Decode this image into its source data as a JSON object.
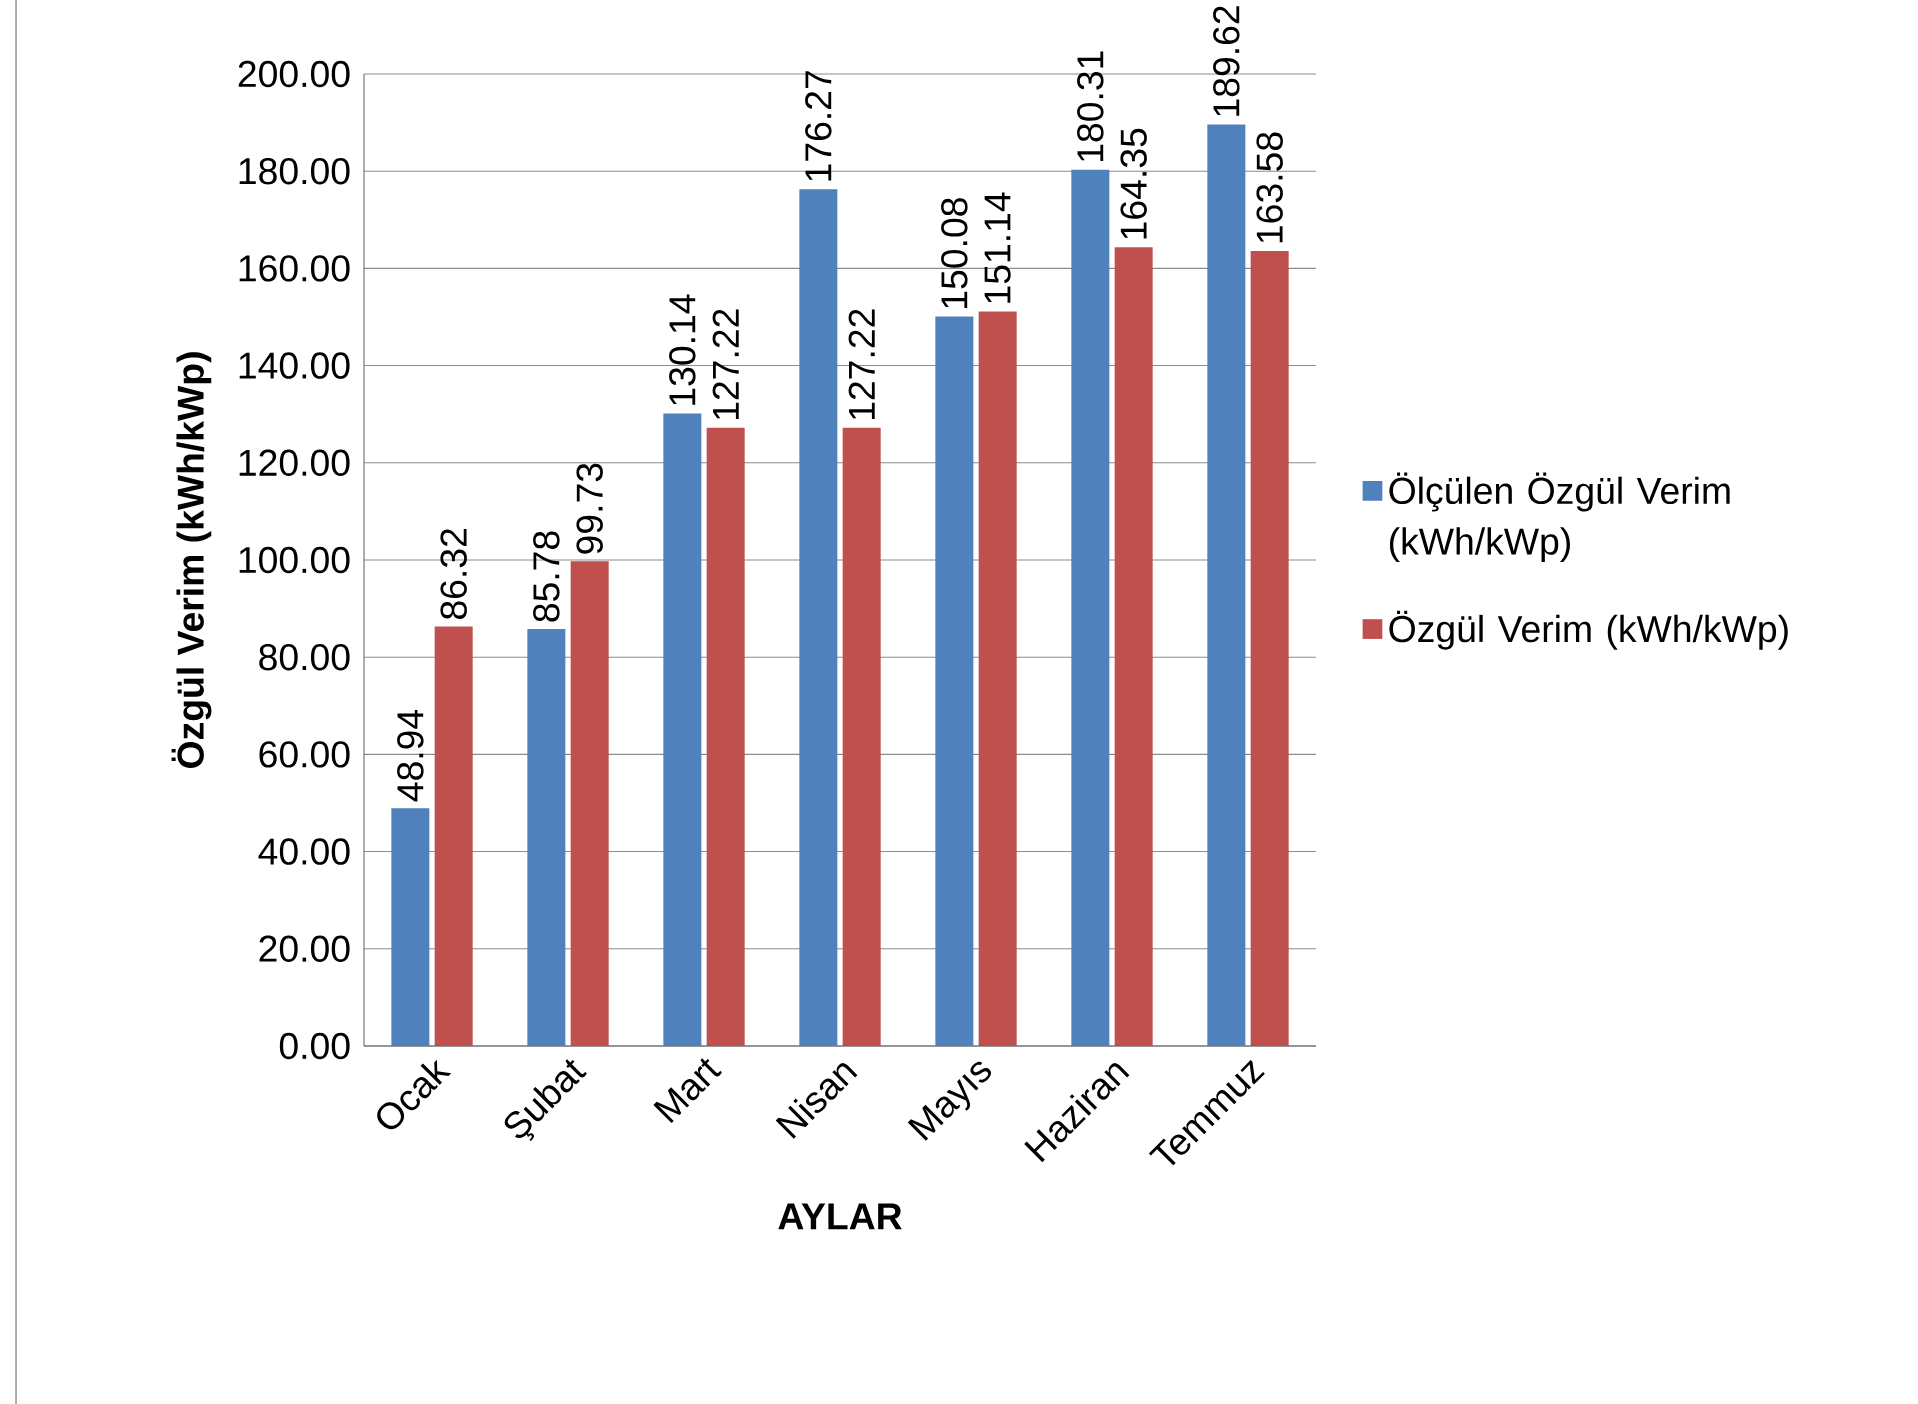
{
  "chart_data": {
    "type": "bar",
    "xlabel": "AYLAR",
    "ylabel": "Özgül Verim (kWh/kWp)",
    "categories": [
      "Ocak",
      "Şubat",
      "Mart",
      "Nisan",
      "Mayıs",
      "Haziran",
      "Temmuz"
    ],
    "series": [
      {
        "name": "Ölçülen Özgül Verim (kWh/kWp)",
        "color": "#4f81bd",
        "values": [
          48.94,
          85.78,
          130.14,
          176.27,
          150.08,
          180.31,
          189.62
        ]
      },
      {
        "name": "Özgül Verim (kWh/kWp)",
        "color": "#c0504d",
        "values": [
          86.32,
          99.73,
          127.22,
          127.22,
          151.14,
          164.35,
          163.58
        ]
      }
    ],
    "ylim": [
      0,
      200
    ],
    "yticks": [
      {
        "value": 0,
        "label": "0.00"
      },
      {
        "value": 20,
        "label": "20.00"
      },
      {
        "value": 40,
        "label": "40.00"
      },
      {
        "value": 60,
        "label": "60.00"
      },
      {
        "value": 80,
        "label": "80.00"
      },
      {
        "value": 100,
        "label": "100.00"
      },
      {
        "value": 120,
        "label": "120.00"
      },
      {
        "value": 140,
        "label": "140.00"
      },
      {
        "value": 160,
        "label": "160.00"
      },
      {
        "value": 180,
        "label": "180.00"
      },
      {
        "value": 200,
        "label": "200.00"
      }
    ],
    "grid": "y",
    "legend": "right",
    "data_labels": true
  }
}
